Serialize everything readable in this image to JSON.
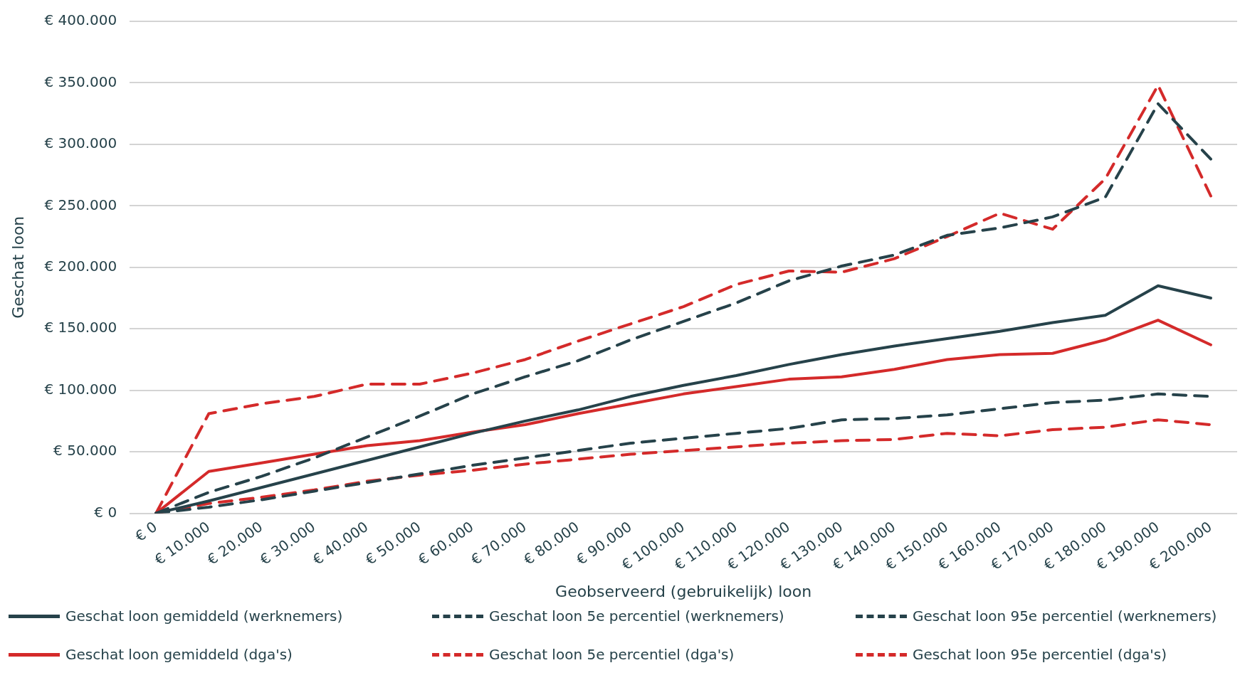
{
  "chart_data": {
    "type": "line",
    "xlabel": "Geobserveerd (gebruikelijk) loon",
    "ylabel": "Geschat loon",
    "categories": [
      "€ 0",
      "€ 10.000",
      "€ 20.000",
      "€ 30.000",
      "€ 40.000",
      "€ 50.000",
      "€ 60.000",
      "€ 70.000",
      "€ 80.000",
      "€ 90.000",
      "€ 100.000",
      "€ 110.000",
      "€ 120.000",
      "€ 130.000",
      "€ 140.000",
      "€ 150.000",
      "€ 160.000",
      "€ 170.000",
      "€ 180.000",
      "€ 190.000",
      "€ 200.000"
    ],
    "series": [
      {
        "name": "Geschat loon gemiddeld (werknemers)",
        "color": "#26424a",
        "line_style": "solid",
        "values": [
          0,
          10000,
          21000,
          32000,
          43000,
          54000,
          65000,
          75000,
          84000,
          95000,
          104000,
          112000,
          121000,
          129000,
          136000,
          142000,
          148000,
          155000,
          161000,
          185000,
          175000
        ]
      },
      {
        "name": "Geschat loon 5e percentiel (werknemers)",
        "color": "#26424a",
        "line_style": "dashed",
        "values": [
          0,
          5000,
          11000,
          18000,
          25000,
          32000,
          39000,
          45000,
          51000,
          57000,
          61000,
          65000,
          69000,
          76000,
          77000,
          80000,
          85000,
          90000,
          92000,
          97000,
          95000
        ]
      },
      {
        "name": "Geschat loon 95e percentiel (werknemers)",
        "color": "#26424a",
        "line_style": "dashed",
        "values": [
          0,
          17000,
          30000,
          45000,
          62000,
          79000,
          97000,
          111000,
          124000,
          141000,
          156000,
          171000,
          189000,
          201000,
          210000,
          226000,
          232000,
          241000,
          257000,
          333000,
          288000
        ]
      },
      {
        "name": "Geschat loon gemiddeld (dga's)",
        "color": "#d42a2a",
        "line_style": "solid",
        "values": [
          0,
          34000,
          41000,
          48000,
          55000,
          59000,
          66000,
          72000,
          81000,
          89000,
          97000,
          103000,
          109000,
          111000,
          117000,
          125000,
          129000,
          130000,
          141000,
          157000,
          137000
        ]
      },
      {
        "name": "Geschat loon 5e percentiel (dga's)",
        "color": "#d42a2a",
        "line_style": "dashed",
        "values": [
          0,
          8000,
          13000,
          19000,
          26000,
          31000,
          35000,
          40000,
          44000,
          48000,
          51000,
          54000,
          57000,
          59000,
          60000,
          65000,
          63000,
          68000,
          70000,
          76000,
          72000
        ]
      },
      {
        "name": "Geschat loon 95e percentiel (dga's)",
        "color": "#d42a2a",
        "line_style": "dashed",
        "values": [
          0,
          81000,
          89000,
          95000,
          105000,
          105000,
          114000,
          125000,
          140000,
          154000,
          168000,
          186000,
          197000,
          196000,
          207000,
          225000,
          244000,
          231000,
          272000,
          348000,
          258000
        ]
      }
    ],
    "ylim": [
      0,
      400000
    ],
    "yticks": [
      {
        "value": 0,
        "label": "€ 0"
      },
      {
        "value": 50000,
        "label": "€ 50.000"
      },
      {
        "value": 100000,
        "label": "€ 100.000"
      },
      {
        "value": 150000,
        "label": "€ 150.000"
      },
      {
        "value": 200000,
        "label": "€ 200.000"
      },
      {
        "value": 250000,
        "label": "€ 250.000"
      },
      {
        "value": 300000,
        "label": "€ 300.000"
      },
      {
        "value": 350000,
        "label": "€ 350.000"
      },
      {
        "value": 400000,
        "label": "€ 400.000"
      }
    ],
    "grid": "y",
    "legend": "bottom",
    "marker": "none"
  }
}
